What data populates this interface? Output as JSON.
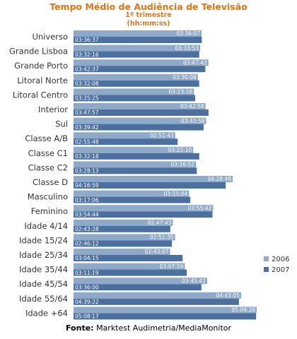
{
  "chart_data": {
    "type": "bar",
    "orientation": "horizontal",
    "title": "Tempo Médio de Audiência  de Televisão",
    "subtitle": "1º trimestre",
    "unit_label": "(hh:mm:ss)",
    "categories": [
      "Universo",
      "Grande Lisboa",
      "Grande Porto",
      "Litoral Norte",
      "Litoral Centro",
      "Interior",
      "Sul",
      "Classe A/B",
      "Classe C1",
      "Classe C2",
      "Classe D",
      "Masculino",
      "Feminino",
      "Idade 4/14",
      "Idade 15/24",
      "Idade 25/34",
      "Idade 35/44",
      "Idade 45/54",
      "Idade 55/64",
      "Idade +64"
    ],
    "series": [
      {
        "name": "2006",
        "color": "#8fa9c8",
        "labels": [
          "03:36:07",
          "03:33:53",
          "03:47:43",
          "03:30:08",
          "03:23:16",
          "03:42:58",
          "03:43:58",
          "02:51:43",
          "03:22:10",
          "03:26:52",
          "04:28:48",
          "03:15:04",
          "03:55:42",
          "02:47:43",
          "02:51:35",
          "02:43:07",
          "03:07:59",
          "03:45:42",
          "04:43:05",
          "05:09:20"
        ]
      },
      {
        "name": "2007",
        "color": "#4b6f9f",
        "labels": [
          "03:36:37",
          "03:32:16",
          "03:42:37",
          "03:32:08",
          "03:25:25",
          "03:47:57",
          "03:39:42",
          "02:55:48",
          "03:32:18",
          "03:28:13",
          "04:16:59",
          "03:17:06",
          "03:54:44",
          "02:43:28",
          "02:46:12",
          "03:04:15",
          "03:11:19",
          "03:36:00",
          "04:39:22",
          "05:08:17"
        ]
      }
    ],
    "legend_position": "bottom-right",
    "grid": false
  },
  "source": {
    "label": "Fonte:",
    "text": "Marktest Audimetria/MediaMonitor"
  }
}
